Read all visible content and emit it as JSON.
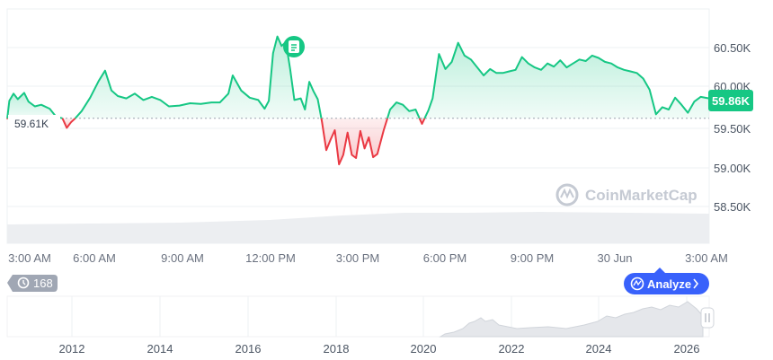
{
  "chart_data": {
    "type": "line",
    "y_ticks": [
      "60.50K",
      "60.00K",
      "59.50K",
      "59.00K",
      "58.50K"
    ],
    "x_ticks": [
      "3:00 AM",
      "6:00 AM",
      "9:00 AM",
      "12:00 PM",
      "3:00 PM",
      "6:00 PM",
      "9:00 PM",
      "30 Jun",
      "3:00 AM"
    ],
    "baseline_label": "59.61K",
    "baseline_value": 59610,
    "current_price_label": "59.86K",
    "current_price_value": 59860,
    "ylim": [
      58200,
      60850
    ],
    "x_unit": "hours since first 3:00 AM tick",
    "series": [
      {
        "values": [
          [
            0,
            59600
          ],
          [
            0.1,
            59830
          ],
          [
            0.3,
            59920
          ],
          [
            0.5,
            59850
          ],
          [
            0.8,
            59930
          ],
          [
            1.0,
            59820
          ],
          [
            1.3,
            59760
          ],
          [
            1.6,
            59780
          ],
          [
            2.0,
            59730
          ],
          [
            2.3,
            59630
          ],
          [
            2.6,
            59610
          ],
          [
            2.8,
            59490
          ],
          [
            3.0,
            59560
          ],
          [
            3.2,
            59610
          ],
          [
            3.5,
            59700
          ],
          [
            3.9,
            59870
          ],
          [
            4.3,
            60080
          ],
          [
            4.6,
            60210
          ],
          [
            4.9,
            59960
          ],
          [
            5.2,
            59890
          ],
          [
            5.6,
            59860
          ],
          [
            6.0,
            59920
          ],
          [
            6.4,
            59840
          ],
          [
            6.8,
            59880
          ],
          [
            7.2,
            59840
          ],
          [
            7.6,
            59760
          ],
          [
            8.1,
            59770
          ],
          [
            8.6,
            59800
          ],
          [
            9.1,
            59790
          ],
          [
            9.6,
            59810
          ],
          [
            10.0,
            59810
          ],
          [
            10.4,
            59920
          ],
          [
            10.6,
            60150
          ],
          [
            11.0,
            59960
          ],
          [
            11.4,
            59870
          ],
          [
            11.8,
            59840
          ],
          [
            12.1,
            59730
          ],
          [
            12.3,
            59830
          ],
          [
            12.5,
            60430
          ],
          [
            12.7,
            60640
          ],
          [
            12.9,
            60520
          ],
          [
            13.1,
            60570
          ],
          [
            13.3,
            60230
          ],
          [
            13.5,
            59840
          ],
          [
            13.8,
            59860
          ],
          [
            14.0,
            59720
          ],
          [
            14.2,
            60070
          ],
          [
            14.4,
            59950
          ],
          [
            14.6,
            59850
          ],
          [
            14.8,
            59560
          ],
          [
            15.0,
            59210
          ],
          [
            15.2,
            59340
          ],
          [
            15.4,
            59460
          ],
          [
            15.6,
            59030
          ],
          [
            15.8,
            59150
          ],
          [
            16.0,
            59430
          ],
          [
            16.2,
            59150
          ],
          [
            16.4,
            59110
          ],
          [
            16.6,
            59450
          ],
          [
            16.8,
            59230
          ],
          [
            17.0,
            59370
          ],
          [
            17.2,
            59120
          ],
          [
            17.4,
            59160
          ],
          [
            17.7,
            59460
          ],
          [
            18.0,
            59720
          ],
          [
            18.3,
            59810
          ],
          [
            18.6,
            59780
          ],
          [
            18.9,
            59700
          ],
          [
            19.2,
            59720
          ],
          [
            19.5,
            59540
          ],
          [
            19.8,
            59710
          ],
          [
            20.0,
            59860
          ],
          [
            20.3,
            60420
          ],
          [
            20.6,
            60230
          ],
          [
            20.9,
            60320
          ],
          [
            21.2,
            60560
          ],
          [
            21.5,
            60400
          ],
          [
            21.8,
            60350
          ],
          [
            22.1,
            60250
          ],
          [
            22.4,
            60150
          ],
          [
            22.7,
            60230
          ],
          [
            23.0,
            60180
          ],
          [
            23.3,
            60180
          ],
          [
            23.6,
            60200
          ],
          [
            23.9,
            60220
          ],
          [
            24.2,
            60380
          ],
          [
            24.5,
            60300
          ],
          [
            24.8,
            60250
          ],
          [
            25.1,
            60220
          ],
          [
            25.4,
            60300
          ],
          [
            25.7,
            60260
          ],
          [
            26.0,
            60340
          ],
          [
            26.3,
            60250
          ],
          [
            26.6,
            60300
          ],
          [
            26.9,
            60350
          ],
          [
            27.2,
            60330
          ],
          [
            27.5,
            60400
          ],
          [
            27.8,
            60370
          ],
          [
            28.1,
            60320
          ],
          [
            28.4,
            60300
          ],
          [
            28.7,
            60250
          ],
          [
            29.0,
            60220
          ],
          [
            29.3,
            60200
          ],
          [
            29.6,
            60180
          ],
          [
            29.9,
            60110
          ],
          [
            30.2,
            59970
          ],
          [
            30.5,
            59660
          ],
          [
            30.8,
            59750
          ],
          [
            31.1,
            59720
          ],
          [
            31.4,
            59870
          ],
          [
            31.7,
            59780
          ],
          [
            32.0,
            59680
          ],
          [
            32.3,
            59820
          ],
          [
            32.6,
            59880
          ],
          [
            33.0,
            59860
          ]
        ]
      }
    ],
    "navigator": {
      "x_ticks": [
        "2012",
        "2014",
        "2016",
        "2018",
        "2020",
        "2022",
        "2024",
        "2026"
      ]
    }
  },
  "watermark": "CoinMarketCap",
  "history_badge_count": "168",
  "analyze_button_label": "Analyze",
  "colors": {
    "up": "#16c784",
    "down": "#ea3943",
    "fill_up": "#dcf6ea",
    "fill_down": "#fbdfe1",
    "analyze": "#3861fb"
  }
}
